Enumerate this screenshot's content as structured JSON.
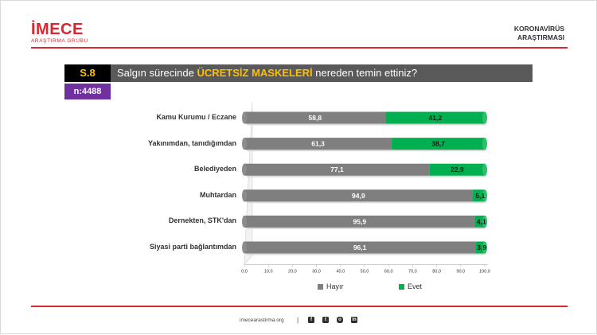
{
  "brand": {
    "name": "İMECE",
    "subtitle": "ARAŞTIRMA GRUBU"
  },
  "header_right": {
    "line1": "KORONAVİRÜS",
    "line2": "ARAŞTIRMASI"
  },
  "question": {
    "number": "S.8",
    "text_before": "Salgın sürecinde ",
    "text_highlight": "ÜCRETSİZ MASKELERİ",
    "text_after": " nereden temin ettiniz?",
    "sample": "n:4488"
  },
  "colors": {
    "hayir": "#7f7f7f",
    "evet": "#00b050",
    "accent": "#d7282f",
    "purple": "#7030a0"
  },
  "chart_data": {
    "type": "bar",
    "orientation": "horizontal",
    "stacked": true,
    "categories": [
      "Kamu Kurumu / Eczane",
      "Yakınımdan, tanıdığımdan",
      "Belediyeden",
      "Muhtardan",
      "Dernekten, STK'dan",
      "Siyasi parti bağlantımdan"
    ],
    "series": [
      {
        "name": "Hayır",
        "values": [
          58.8,
          61.3,
          77.1,
          94.9,
          95.9,
          96.1
        ],
        "labels": [
          "58,8",
          "61,3",
          "77,1",
          "94,9",
          "95,9",
          "96,1"
        ]
      },
      {
        "name": "Evet",
        "values": [
          41.2,
          38.7,
          22.9,
          5.1,
          4.1,
          3.9
        ],
        "labels": [
          "41,2",
          "38,7",
          "22,9",
          "5,1",
          "4,1",
          "3,9"
        ]
      }
    ],
    "xlim": [
      0,
      100
    ],
    "x_ticks": [
      "0,0",
      "10,0",
      "20,0",
      "30,0",
      "40,0",
      "50,0",
      "60,0",
      "70,0",
      "80,0",
      "90,0",
      "100,0"
    ],
    "legend": {
      "position": "bottom",
      "items": [
        "Hayır",
        "Evet"
      ]
    }
  },
  "footer": {
    "website": "imecearastirma.org",
    "social": [
      "facebook-icon",
      "twitter-icon",
      "instagram-icon",
      "linkedin-icon"
    ]
  }
}
